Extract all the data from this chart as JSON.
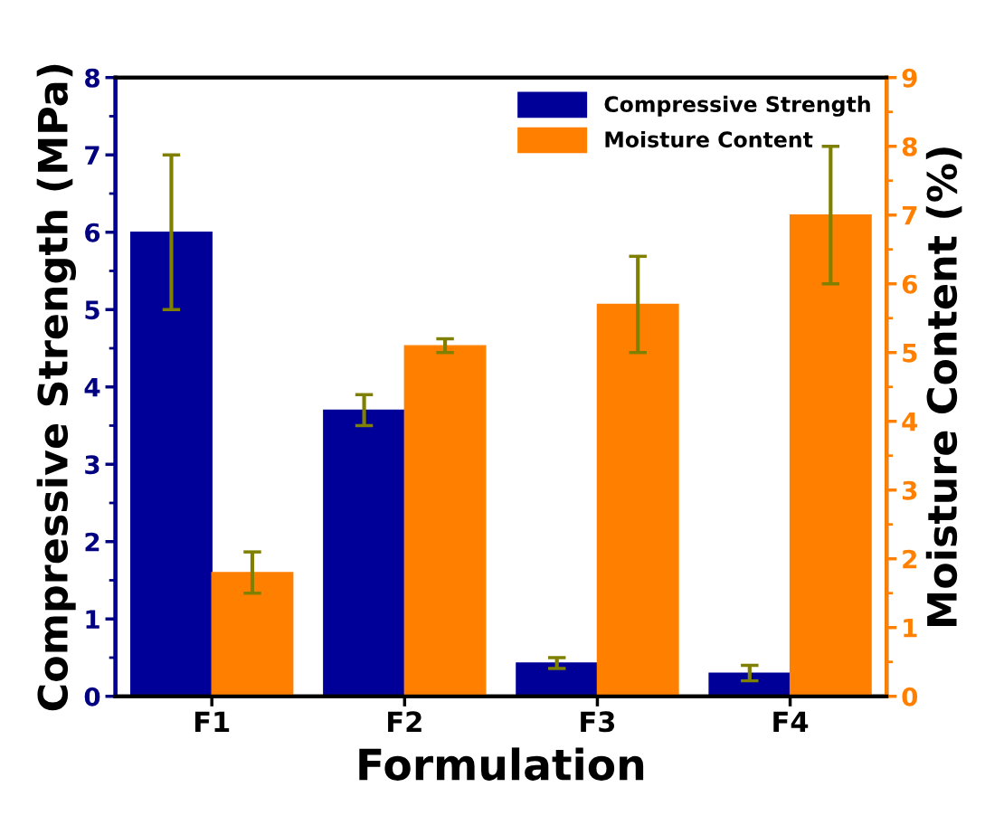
{
  "chart_data": {
    "type": "bar",
    "xlabel": "Formulation",
    "ylabel": "Compressive Strength (MPa)",
    "y2label": "Moisture Content (%)",
    "categories": [
      "F1",
      "F2",
      "F3",
      "F4"
    ],
    "series": [
      {
        "name": "Compressive Strength",
        "color": "#000099",
        "values": [
          6.0,
          3.7,
          0.43,
          0.3
        ],
        "errors": [
          1.0,
          0.2,
          0.07,
          0.1
        ]
      },
      {
        "name": "Moisture Content",
        "color": "#ff8000",
        "axis": "y2",
        "values": [
          1.8,
          5.1,
          5.7,
          7.0
        ],
        "errors": [
          0.3,
          0.1,
          0.7,
          1.0
        ]
      }
    ],
    "ylim": [
      0,
      8
    ],
    "yticks": [
      0,
      1,
      2,
      3,
      4,
      5,
      6,
      7,
      8
    ],
    "y2lim": [
      0,
      9
    ],
    "y2ticks": [
      0,
      1,
      2,
      3,
      4,
      5,
      6,
      7,
      8,
      9
    ],
    "legend": "top right",
    "grid": false
  }
}
